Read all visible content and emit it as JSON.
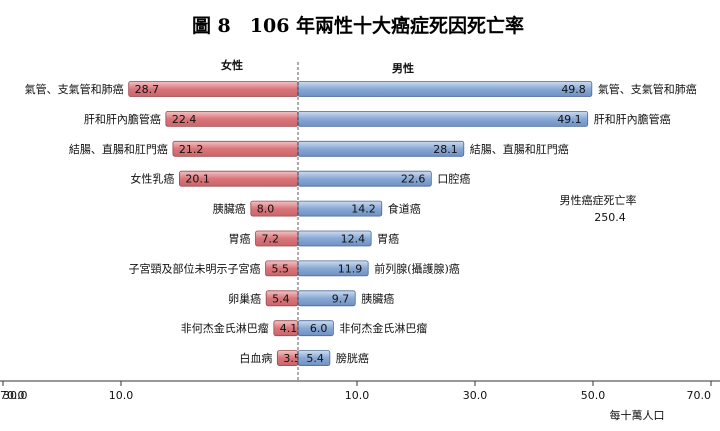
{
  "chart_data": {
    "type": "bar",
    "title": "圖 8　106 年兩性十大癌症死因死亡率",
    "unit_label": "每十萬人口",
    "female_header": "女性",
    "male_header": "男性",
    "male_total_label": "男性癌症死亡率",
    "male_total_value": "250.4",
    "xlim": [
      0,
      70
    ],
    "ticks": [
      {
        "label": "70.0",
        "side": "left",
        "value": 70
      },
      {
        "label": "30.0",
        "side": "left",
        "value": 50
      },
      {
        "label": "10.0",
        "side": "left",
        "value": 30
      },
      {
        "label": "10.0",
        "side": "right",
        "value": 10
      },
      {
        "label": "30.0",
        "side": "right",
        "value": 30
      },
      {
        "label": "50.0",
        "side": "right",
        "value": 50
      },
      {
        "label": "70.0",
        "side": "right",
        "value": 70
      }
    ],
    "colors": {
      "female": "#d9757a",
      "male": "#88a8d4",
      "female_edge": "#9b4a4f",
      "male_edge": "#4a6a98"
    },
    "female": [
      {
        "name": "氣管、支氣管和肺癌",
        "value": 28.7
      },
      {
        "name": "肝和肝內膽管癌",
        "value": 22.4
      },
      {
        "name": "結腸、直腸和肛門癌",
        "value": 21.2
      },
      {
        "name": "女性乳癌",
        "value": 20.1
      },
      {
        "name": "胰臟癌",
        "value": 8.0
      },
      {
        "name": "胃癌",
        "value": 7.2
      },
      {
        "name": "子宮頸及部位未明示子宮癌",
        "value": 5.5
      },
      {
        "name": "卵巢癌",
        "value": 5.4
      },
      {
        "name": "非何杰金氏淋巴瘤",
        "value": 4.1
      },
      {
        "name": "白血病",
        "value": 3.5
      }
    ],
    "male": [
      {
        "name": "氣管、支氣管和肺癌",
        "value": 49.8
      },
      {
        "name": "肝和肝內膽管癌",
        "value": 49.1
      },
      {
        "name": "結腸、直腸和肛門癌",
        "value": 28.1
      },
      {
        "name": "口腔癌",
        "value": 22.6
      },
      {
        "name": "食道癌",
        "value": 14.2
      },
      {
        "name": "胃癌",
        "value": 12.4
      },
      {
        "name": "前列腺(攝護腺)癌",
        "value": 11.9
      },
      {
        "name": "胰臟癌",
        "value": 9.7
      },
      {
        "name": "非何杰金氏淋巴瘤",
        "value": 6.0
      },
      {
        "name": "膀胱癌",
        "value": 5.4
      }
    ]
  }
}
